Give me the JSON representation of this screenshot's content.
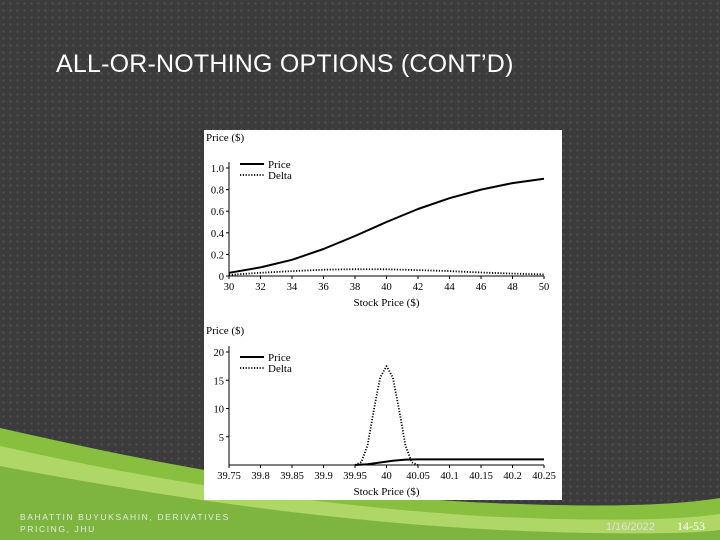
{
  "slide": {
    "title": "ALL-OR-NOTHING OPTIONS (CONT’D)",
    "footer_line1": "BAHATTIN BUYUKSAHIN, DERIVATIVES",
    "footer_line2": "PRICING, JHU",
    "date": "1/16/2022",
    "page_number": "14-53"
  },
  "colors": {
    "background": "#3b3b3b",
    "accent_green": "#8cc63f",
    "line": "#000000"
  },
  "chart_data": [
    {
      "type": "line",
      "ylabel": "Price ($)",
      "xlabel": "Stock Price ($)",
      "xlim": [
        30,
        50
      ],
      "ylim": [
        0,
        1.0
      ],
      "x_ticks": [
        "30",
        "32",
        "34",
        "36",
        "38",
        "40",
        "42",
        "44",
        "46",
        "48",
        "50"
      ],
      "y_ticks": [
        "0",
        "0.2",
        "0.4",
        "0.6",
        "0.8",
        "1.0"
      ],
      "legend": {
        "position": "top-left",
        "entries": [
          "Price",
          "Delta"
        ]
      },
      "series": [
        {
          "name": "Price",
          "style": "solid",
          "x": [
            30,
            32,
            34,
            36,
            38,
            40,
            42,
            44,
            46,
            48,
            50
          ],
          "values": [
            0.03,
            0.08,
            0.15,
            0.25,
            0.37,
            0.5,
            0.62,
            0.72,
            0.8,
            0.86,
            0.9
          ]
        },
        {
          "name": "Delta",
          "style": "dotted",
          "x": [
            30,
            32,
            34,
            36,
            38,
            40,
            42,
            44,
            46,
            48,
            50
          ],
          "values": [
            0.01,
            0.03,
            0.045,
            0.058,
            0.063,
            0.062,
            0.055,
            0.045,
            0.032,
            0.022,
            0.015
          ]
        }
      ]
    },
    {
      "type": "line",
      "ylabel": "Price ($)",
      "xlabel": "Stock Price ($)",
      "xlim": [
        39.75,
        40.25
      ],
      "ylim": [
        0,
        20
      ],
      "x_ticks": [
        "39.75",
        "39.8",
        "39.85",
        "39.9",
        "39.95",
        "40",
        "40.05",
        "40.1",
        "40.15",
        "40.2",
        "40.25"
      ],
      "y_ticks": [
        "5",
        "10",
        "15",
        "20"
      ],
      "legend": {
        "position": "top-left",
        "entries": [
          "Price",
          "Delta"
        ]
      },
      "series": [
        {
          "name": "Price",
          "style": "solid",
          "x": [
            39.95,
            39.97,
            39.99,
            40.0,
            40.01,
            40.03,
            40.05,
            40.1,
            40.15,
            40.2,
            40.25
          ],
          "values": [
            0.0,
            0.12,
            0.45,
            0.6,
            0.75,
            0.95,
            1.0,
            1.0,
            1.0,
            1.0,
            1.0
          ]
        },
        {
          "name": "Delta",
          "style": "dotted",
          "x": [
            39.95,
            39.96,
            39.97,
            39.98,
            39.99,
            40.0,
            40.01,
            40.02,
            40.03,
            40.04,
            40.05
          ],
          "values": [
            0.0,
            0.5,
            3.5,
            9.8,
            15.5,
            17.5,
            15.5,
            9.8,
            3.5,
            0.5,
            0.0
          ]
        }
      ]
    }
  ]
}
